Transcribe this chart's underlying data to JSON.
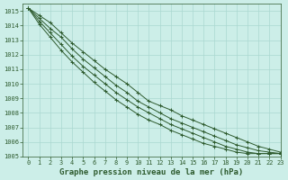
{
  "title": "Graphe pression niveau de la mer (hPa)",
  "background_color": "#cceee8",
  "grid_color": "#aad8d0",
  "line_color": "#2d5a2d",
  "xlim": [
    -0.5,
    23
  ],
  "ylim": [
    1005,
    1015.5
  ],
  "xticks": [
    0,
    1,
    2,
    3,
    4,
    5,
    6,
    7,
    8,
    9,
    10,
    11,
    12,
    13,
    14,
    15,
    16,
    17,
    18,
    19,
    20,
    21,
    22,
    23
  ],
  "yticks": [
    1005,
    1006,
    1007,
    1008,
    1009,
    1010,
    1011,
    1012,
    1013,
    1014,
    1015
  ],
  "lines": [
    [
      1015.2,
      1014.7,
      1014.2,
      1013.5,
      1012.8,
      1012.2,
      1011.6,
      1011.0,
      1010.5,
      1010.0,
      1009.4,
      1008.8,
      1008.5,
      1008.2,
      1007.8,
      1007.5,
      1007.2,
      1006.9,
      1006.6,
      1006.3,
      1006.0,
      1005.7,
      1005.5,
      1005.3
    ],
    [
      1015.2,
      1014.5,
      1013.8,
      1013.2,
      1012.4,
      1011.7,
      1011.1,
      1010.5,
      1009.9,
      1009.4,
      1008.8,
      1008.4,
      1008.0,
      1007.6,
      1007.3,
      1007.0,
      1006.7,
      1006.4,
      1006.1,
      1005.8,
      1005.6,
      1005.4,
      1005.3,
      1005.2
    ],
    [
      1015.2,
      1014.3,
      1013.5,
      1012.7,
      1011.9,
      1011.2,
      1010.6,
      1010.0,
      1009.4,
      1008.9,
      1008.4,
      1008.0,
      1007.6,
      1007.2,
      1006.9,
      1006.6,
      1006.3,
      1006.0,
      1005.7,
      1005.5,
      1005.3,
      1005.2,
      1005.2,
      1005.2
    ],
    [
      1015.2,
      1014.1,
      1013.2,
      1012.3,
      1011.5,
      1010.8,
      1010.1,
      1009.5,
      1008.9,
      1008.4,
      1007.9,
      1007.5,
      1007.2,
      1006.8,
      1006.5,
      1006.2,
      1005.9,
      1005.7,
      1005.5,
      1005.3,
      1005.2,
      1005.2,
      1005.2,
      1005.2
    ]
  ],
  "xlabel_fontsize": 6.5,
  "tick_fontsize": 5.0,
  "linewidth": 0.7,
  "markersize": 3.5,
  "markeredgewidth": 0.7
}
